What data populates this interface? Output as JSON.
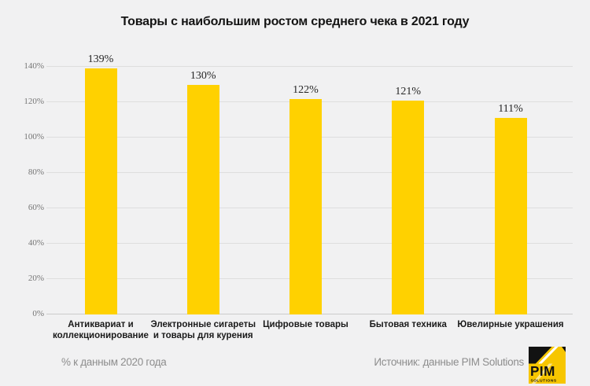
{
  "chart_data": {
    "type": "bar",
    "title": "Товары с наибольшим ростом среднего чека в 2021 году",
    "categories": [
      "Антиквариат и коллекционирование",
      "Электронные сигареты и товары для курения",
      "Цифровые товары",
      "Бытовая техника",
      "Ювелирные украшения"
    ],
    "category_lines": [
      [
        "Антиквариат и",
        "коллекционирование"
      ],
      [
        "Электронные сигареты",
        "и товары для курения"
      ],
      [
        "Цифровые товары"
      ],
      [
        "Бытовая техника"
      ],
      [
        "Ювелирные украшения"
      ]
    ],
    "values": [
      139,
      130,
      122,
      121,
      111
    ],
    "value_labels": [
      "139%",
      "130%",
      "122%",
      "121%",
      "111%"
    ],
    "ylim": [
      0,
      140
    ],
    "ytick_step": 20,
    "ytick_labels": [
      "0%",
      "20%",
      "40%",
      "60%",
      "80%",
      "100%",
      "120%",
      "140%"
    ],
    "grid": true,
    "legend": "none",
    "bar_color": "#ffd100",
    "background_color": "#f1f1f2",
    "gridline_color": "#dedede"
  },
  "footer": {
    "footnote": "% к данным 2020 года",
    "source": "Источник: данные PIM Solutions",
    "logo": {
      "name": "PIM",
      "sub": "SOLUTIONS",
      "yellow": "#f7c600"
    }
  }
}
